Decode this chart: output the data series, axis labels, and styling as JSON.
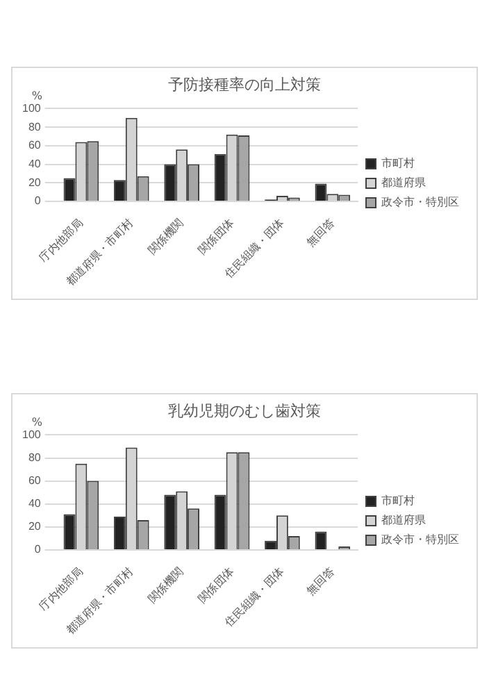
{
  "chart_data": [
    {
      "type": "bar",
      "title": "予防接種率の向上対策",
      "ylabel": "%",
      "categories": [
        "庁内他部局",
        "都道府県・市町村",
        "関係機関",
        "関係団体",
        "住民組織・団体",
        "無回答"
      ],
      "series": [
        {
          "name": "市町村",
          "color": "#222222",
          "values": [
            25,
            23,
            40,
            51,
            2,
            19
          ]
        },
        {
          "name": "都道府県",
          "color": "#d4d4d4",
          "values": [
            64,
            90,
            56,
            72,
            6,
            8
          ]
        },
        {
          "name": "政令市・特別区",
          "color": "#a6a6a6",
          "values": [
            65,
            27,
            40,
            71,
            4,
            7
          ]
        }
      ],
      "ylim": [
        0,
        100
      ],
      "yticks": [
        0,
        20,
        40,
        60,
        80,
        100
      ],
      "grid": "y",
      "legend": "right"
    },
    {
      "type": "bar",
      "title": "乳幼児期のむし歯対策",
      "ylabel": "%",
      "categories": [
        "庁内他部局",
        "都道府県・市町村",
        "関係機関",
        "関係団体",
        "住民組織・団体",
        "無回答"
      ],
      "series": [
        {
          "name": "市町村",
          "color": "#222222",
          "values": [
            31,
            29,
            48,
            48,
            8,
            16
          ]
        },
        {
          "name": "都道府県",
          "color": "#d4d4d4",
          "values": [
            75,
            89,
            51,
            85,
            30,
            0
          ]
        },
        {
          "name": "政令市・特別区",
          "color": "#a6a6a6",
          "values": [
            60,
            26,
            36,
            85,
            12,
            3
          ]
        }
      ],
      "ylim": [
        0,
        100
      ],
      "yticks": [
        0,
        20,
        40,
        60,
        80,
        100
      ],
      "grid": "y",
      "legend": "right"
    }
  ]
}
